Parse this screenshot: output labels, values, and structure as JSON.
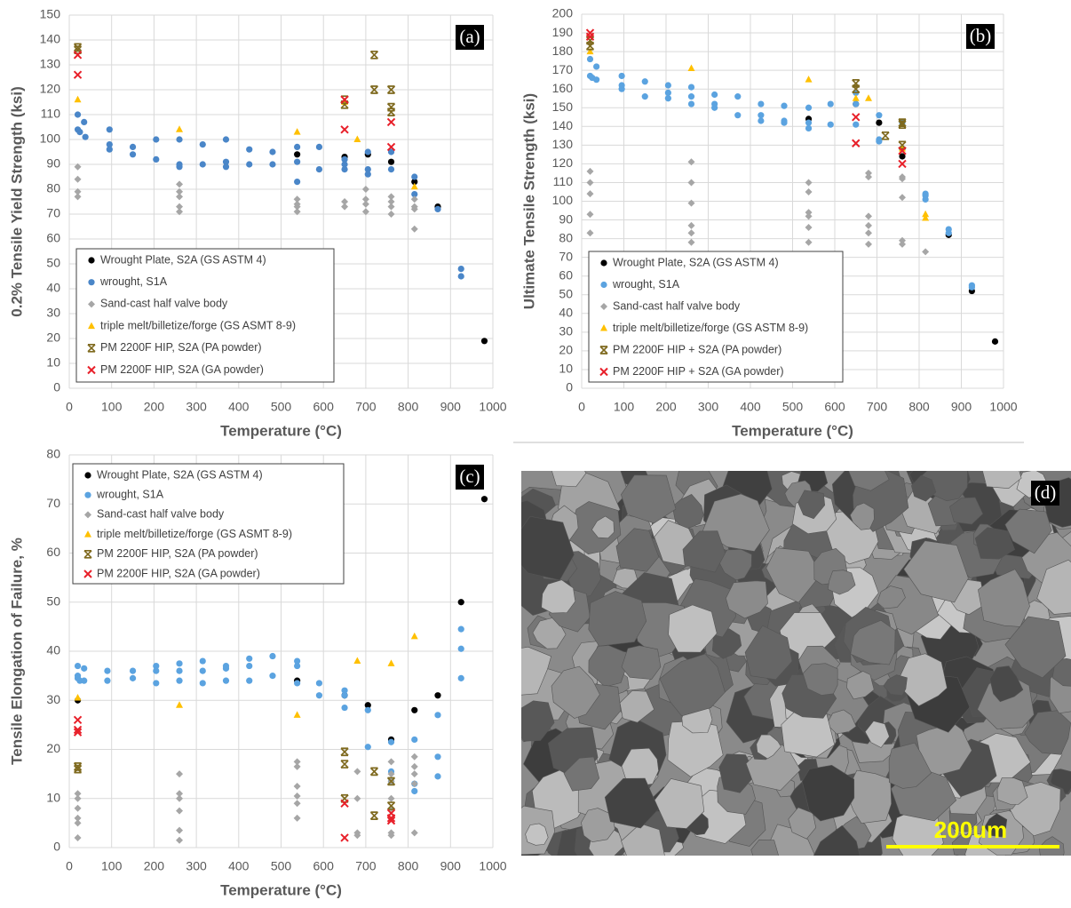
{
  "chart_data": [
    {
      "type": "scatter",
      "panel_label": "(a)",
      "xlabel": "Temperature (°C)",
      "ylabel": "0.2% Tensile Yield Strength (ksi)",
      "xlim": [
        0,
        1000
      ],
      "xticks": [
        0,
        100,
        200,
        300,
        400,
        500,
        600,
        700,
        800,
        900,
        1000
      ],
      "ylim": [
        0,
        150
      ],
      "yticks": [
        0,
        10,
        20,
        30,
        40,
        50,
        60,
        70,
        80,
        90,
        100,
        110,
        120,
        130,
        140,
        150
      ],
      "grid": true,
      "legend": "lower left",
      "series": [
        {
          "name": "Wrought Plate, S2A (GS ASTM 4)",
          "color": "#000000",
          "marker": "circle",
          "x": [
            538,
            650,
            705,
            760,
            815,
            870,
            980
          ],
          "values": [
            94,
            93,
            94,
            91,
            83,
            73,
            19
          ]
        },
        {
          "name": "wrought, S1A",
          "color": "#4a86c8",
          "marker": "circle",
          "x": [
            20,
            20,
            25,
            35,
            38,
            95,
            95,
            95,
            150,
            150,
            205,
            205,
            260,
            260,
            260,
            315,
            315,
            370,
            370,
            370,
            425,
            425,
            480,
            480,
            538,
            538,
            538,
            590,
            590,
            650,
            650,
            650,
            705,
            705,
            705,
            760,
            760,
            815,
            815,
            870,
            925,
            925
          ],
          "values": [
            110,
            104,
            103,
            107,
            101,
            104,
            98,
            96,
            97,
            94,
            100,
            92,
            100,
            89,
            90,
            98,
            90,
            100,
            91,
            89,
            96,
            90,
            95,
            90,
            97,
            91,
            83,
            97,
            88,
            92,
            90,
            88,
            95,
            88,
            86,
            95,
            88,
            85,
            78,
            72,
            48,
            45
          ]
        },
        {
          "name": "Sand-cast half valve body",
          "color": "#a6a6a6",
          "marker": "diamond",
          "x": [
            20,
            20,
            20,
            20,
            260,
            260,
            260,
            260,
            260,
            538,
            538,
            538,
            538,
            650,
            650,
            700,
            700,
            700,
            700,
            760,
            760,
            760,
            760,
            815,
            815,
            815,
            815
          ],
          "values": [
            89,
            84,
            79,
            77,
            82,
            79,
            77,
            73,
            71,
            76,
            74,
            73,
            71,
            75,
            73,
            80,
            76,
            74,
            71,
            77,
            75,
            73,
            70,
            76,
            73,
            72,
            64
          ]
        },
        {
          "name": "triple melt/billetize/forge (GS ASMT 8-9)",
          "color": "#ffc000",
          "marker": "triangle",
          "x": [
            20,
            260,
            538,
            650,
            680,
            815
          ],
          "values": [
            116,
            104,
            103,
            115,
            100,
            81
          ]
        },
        {
          "name": "PM 2200F HIP, S2A (PA powder)",
          "color": "#7f6a1f",
          "marker": "star",
          "x": [
            20,
            20,
            650,
            650,
            720,
            720,
            760,
            760,
            760
          ],
          "values": [
            137,
            136,
            116,
            114,
            134,
            120,
            120,
            113,
            111
          ]
        },
        {
          "name": "PM 2200F HIP, S2A (GA powder)",
          "color": "#e8202a",
          "marker": "x",
          "x": [
            20,
            20,
            650,
            650,
            760,
            760
          ],
          "values": [
            134,
            126,
            116,
            104,
            107,
            97
          ]
        }
      ]
    },
    {
      "type": "scatter",
      "panel_label": "(b)",
      "xlabel": "Temperature (°C)",
      "ylabel": "Ultimate Tensile Strength (ksi)",
      "xlim": [
        0,
        1000
      ],
      "xticks": [
        0,
        100,
        200,
        300,
        400,
        500,
        600,
        700,
        800,
        900,
        1000
      ],
      "ylim": [
        0,
        200
      ],
      "yticks": [
        0,
        10,
        20,
        30,
        40,
        50,
        60,
        70,
        80,
        90,
        100,
        110,
        120,
        130,
        140,
        150,
        160,
        170,
        180,
        190,
        200
      ],
      "grid": true,
      "legend": "lower left",
      "series": [
        {
          "name": "Wrought Plate, S2A (GS ASTM 4)",
          "color": "#000000",
          "marker": "circle",
          "x": [
            538,
            650,
            705,
            760,
            870,
            925,
            980
          ],
          "values": [
            144,
            152,
            142,
            124,
            82,
            52,
            25
          ]
        },
        {
          "name": "wrought, S1A",
          "color": "#5ba3e0",
          "marker": "circle",
          "x": [
            20,
            20,
            25,
            35,
            35,
            95,
            95,
            95,
            150,
            150,
            205,
            205,
            205,
            260,
            260,
            260,
            315,
            315,
            315,
            370,
            370,
            425,
            425,
            425,
            480,
            480,
            480,
            538,
            538,
            538,
            590,
            590,
            650,
            650,
            650,
            705,
            705,
            705,
            760,
            760,
            815,
            815,
            815,
            870,
            870,
            925,
            925
          ],
          "values": [
            176,
            167,
            166,
            172,
            165,
            167,
            162,
            160,
            164,
            156,
            162,
            158,
            155,
            161,
            156,
            152,
            157,
            152,
            150,
            156,
            146,
            152,
            146,
            143,
            151,
            143,
            142,
            150,
            142,
            139,
            152,
            141,
            158,
            152,
            141,
            146,
            133,
            132,
            142,
            128,
            104,
            103,
            101,
            85,
            83,
            55,
            54
          ]
        },
        {
          "name": "Sand-cast half valve body",
          "color": "#a6a6a6",
          "marker": "diamond",
          "x": [
            20,
            20,
            20,
            20,
            20,
            260,
            260,
            260,
            260,
            260,
            260,
            538,
            538,
            538,
            538,
            538,
            538,
            680,
            680,
            680,
            680,
            680,
            680,
            760,
            760,
            760,
            760,
            760,
            815
          ],
          "values": [
            116,
            110,
            104,
            93,
            83,
            121,
            110,
            99,
            87,
            83,
            78,
            110,
            105,
            94,
            92,
            86,
            78,
            115,
            113,
            92,
            87,
            83,
            77,
            113,
            112,
            102,
            79,
            77,
            73
          ]
        },
        {
          "name": "triple melt/billetize/forge (GS ASTM 8-9)",
          "color": "#ffc000",
          "marker": "triangle",
          "x": [
            20,
            260,
            538,
            650,
            680,
            760,
            815,
            815
          ],
          "values": [
            180,
            171,
            165,
            155,
            155,
            128,
            91,
            93
          ]
        },
        {
          "name": "PM 2200F HIP + S2A (PA powder)",
          "color": "#7f6a1f",
          "marker": "star",
          "x": [
            20,
            20,
            650,
            650,
            720,
            760,
            760,
            760
          ],
          "values": [
            186,
            183,
            163,
            160,
            135,
            142,
            141,
            130
          ]
        },
        {
          "name": "PM 2200F HIP + S2A (GA powder)",
          "color": "#e8202a",
          "marker": "x",
          "x": [
            20,
            20,
            650,
            650,
            760,
            760
          ],
          "values": [
            190,
            188,
            145,
            131,
            127,
            120
          ]
        }
      ]
    },
    {
      "type": "scatter",
      "panel_label": "(c)",
      "xlabel": "Temperature (°C)",
      "ylabel": "Tensile Elongation of Failure, %",
      "xlim": [
        0,
        1000
      ],
      "xticks": [
        0,
        100,
        200,
        300,
        400,
        500,
        600,
        700,
        800,
        900,
        1000
      ],
      "ylim": [
        0,
        80
      ],
      "yticks": [
        0,
        10,
        20,
        30,
        40,
        50,
        60,
        70,
        80
      ],
      "grid": true,
      "legend": "upper left",
      "series": [
        {
          "name": "Wrought Plate, S2A (GS ASTM 4)",
          "color": "#000000",
          "marker": "circle",
          "x": [
            20,
            538,
            650,
            705,
            760,
            815,
            870,
            925,
            980
          ],
          "values": [
            30,
            34,
            31,
            29,
            22,
            28,
            31,
            50,
            71
          ]
        },
        {
          "name": "wrought, S1A",
          "color": "#5ba3e0",
          "marker": "circle",
          "x": [
            20,
            20,
            20,
            25,
            35,
            35,
            90,
            90,
            150,
            150,
            205,
            205,
            205,
            260,
            260,
            260,
            315,
            315,
            315,
            370,
            370,
            370,
            425,
            425,
            425,
            480,
            480,
            538,
            538,
            538,
            590,
            590,
            650,
            650,
            650,
            705,
            705,
            760,
            760,
            760,
            815,
            815,
            815,
            870,
            870,
            870,
            925,
            925,
            925
          ],
          "values": [
            37,
            35,
            34.5,
            34,
            36.5,
            34,
            36,
            34,
            36,
            34.5,
            37,
            36,
            33.5,
            37.5,
            36,
            34,
            38,
            36,
            33.5,
            37,
            36.5,
            34,
            38.5,
            37,
            34,
            39,
            35,
            38,
            37,
            33.5,
            33.5,
            31,
            32,
            31,
            28.5,
            28,
            20.5,
            21.5,
            15.5,
            13.5,
            22,
            13,
            11.5,
            27,
            18.5,
            14.5,
            44.5,
            40.5,
            34.5
          ]
        },
        {
          "name": "Sand-cast half valve body",
          "color": "#a6a6a6",
          "marker": "diamond",
          "x": [
            20,
            20,
            20,
            20,
            20,
            20,
            260,
            260,
            260,
            260,
            260,
            260,
            538,
            538,
            538,
            538,
            538,
            538,
            680,
            680,
            680,
            680,
            760,
            760,
            760,
            760,
            760,
            760,
            760,
            815,
            815,
            815,
            815,
            815
          ],
          "values": [
            11,
            10,
            8,
            6,
            5,
            2,
            15,
            11,
            10,
            7.5,
            3.5,
            1.5,
            17.5,
            16.5,
            12.5,
            10.5,
            9,
            6,
            15.5,
            10,
            3,
            2.5,
            17.5,
            15,
            13.5,
            10,
            8,
            3,
            2.5,
            18.5,
            16.5,
            15,
            13,
            3
          ]
        },
        {
          "name": "triple melt/billetize/forge (GS ASMT 8-9)",
          "color": "#ffc000",
          "marker": "triangle",
          "x": [
            20,
            260,
            538,
            680,
            760,
            815
          ],
          "values": [
            30.5,
            29,
            27,
            38,
            37.5,
            43
          ]
        },
        {
          "name": "PM 2200F HIP, S2A (PA powder)",
          "color": "#7f6a1f",
          "marker": "star",
          "x": [
            20,
            20,
            650,
            650,
            650,
            720,
            720,
            760,
            760
          ],
          "values": [
            16.5,
            16,
            19.5,
            17,
            10,
            15.5,
            6.5,
            13.5,
            8.5
          ]
        },
        {
          "name": "PM 2200F HIP, S2A (GA powder)",
          "color": "#e8202a",
          "marker": "x",
          "x": [
            20,
            20,
            20,
            650,
            650,
            760,
            760,
            760
          ],
          "values": [
            26,
            24,
            23.5,
            9,
            2,
            7,
            6,
            5.5
          ]
        }
      ]
    }
  ],
  "micrograph": {
    "label": "(d)",
    "scale_bar": "200um"
  }
}
